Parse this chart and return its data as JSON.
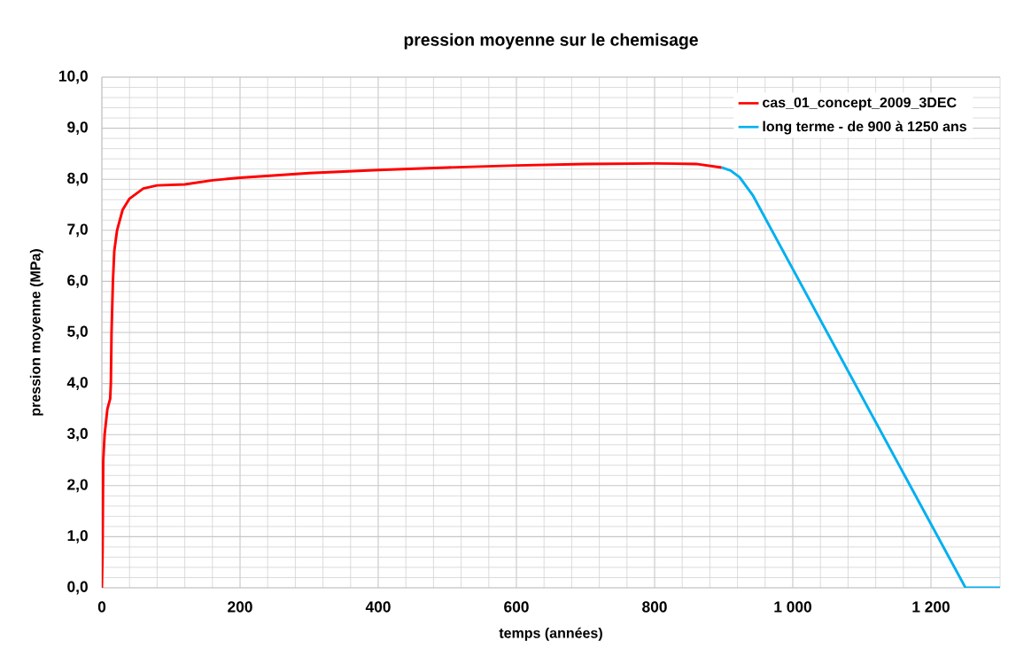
{
  "chart_data": {
    "type": "line",
    "title": "pression moyenne sur le chemisage",
    "xlabel": "temps (années)",
    "ylabel": "pression moyenne (MPa)",
    "series": [
      {
        "name": "cas_01_concept_2009_3DEC",
        "color": "#ff0000",
        "x": [
          0,
          1,
          2,
          4,
          8,
          12,
          13,
          14,
          16,
          18,
          22,
          30,
          40,
          60,
          80,
          120,
          160,
          200,
          300,
          400,
          500,
          600,
          700,
          800,
          860,
          897
        ],
        "values": [
          0,
          0.7,
          2.5,
          3.0,
          3.5,
          3.7,
          4.0,
          5.0,
          6.0,
          6.6,
          7.0,
          7.4,
          7.62,
          7.82,
          7.88,
          7.9,
          7.98,
          8.03,
          8.12,
          8.18,
          8.23,
          8.27,
          8.3,
          8.31,
          8.3,
          8.23
        ]
      },
      {
        "name": "long terme - de 900 à 1250 ans",
        "color": "#00b0f0",
        "x": [
          897,
          910,
          923,
          942,
          1250,
          1300
        ],
        "values": [
          8.23,
          8.17,
          8.04,
          7.69,
          0,
          0
        ]
      }
    ],
    "xlim": [
      0,
      1300
    ],
    "ylim": [
      0,
      10
    ],
    "xticks": [
      0,
      200,
      400,
      600,
      800,
      {
        "value": 1000,
        "label": "1 000"
      },
      {
        "value": 1200,
        "label": "1 200"
      }
    ],
    "yticks": [
      {
        "value": 0,
        "label": "0,0"
      },
      {
        "value": 1,
        "label": "1,0"
      },
      {
        "value": 2,
        "label": "2,0"
      },
      {
        "value": 3,
        "label": "3,0"
      },
      {
        "value": 4,
        "label": "4,0"
      },
      {
        "value": 5,
        "label": "5,0"
      },
      {
        "value": 6,
        "label": "6,0"
      },
      {
        "value": 7,
        "label": "7,0"
      },
      {
        "value": 8,
        "label": "8,0"
      },
      {
        "value": 9,
        "label": "9,0"
      },
      {
        "value": 10,
        "label": "10,0"
      }
    ],
    "grid": true,
    "legend": "top right",
    "marker": "none",
    "line_style": "solid"
  }
}
